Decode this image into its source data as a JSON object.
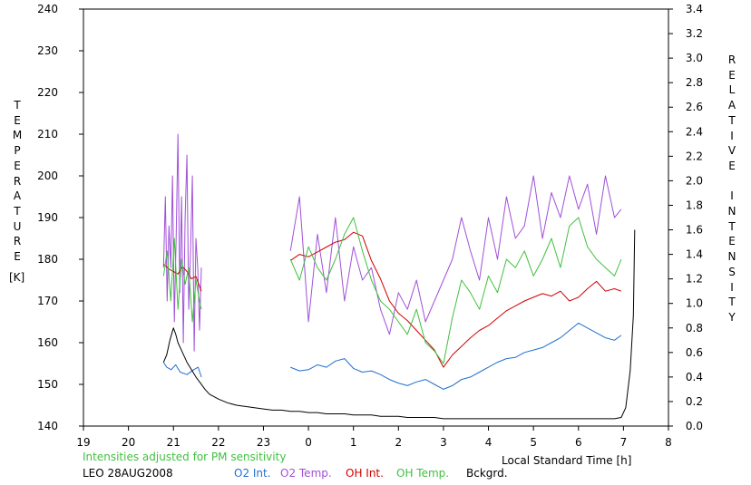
{
  "chart_data": {
    "type": "line",
    "xlabel": "Local Standard Time [h]",
    "ylabel_left": "TEMPERATURE",
    "ylabel_left_unit": "[K]",
    "ylabel_right": "RELATIVE INTENSITY",
    "note": "Intensities adjusted for PM sensitivity",
    "caption": "LEO 28AUG2008",
    "x_tick_labels": [
      "19",
      "20",
      "21",
      "22",
      "23",
      "0",
      "1",
      "2",
      "3",
      "4",
      "5",
      "6",
      "7",
      "8"
    ],
    "x_tick_positions": [
      19,
      20,
      21,
      22,
      23,
      24,
      25,
      26,
      27,
      28,
      29,
      30,
      31,
      32
    ],
    "xlim": [
      19,
      32
    ],
    "ylim_left": [
      140,
      240
    ],
    "yticks_left": [
      140,
      150,
      160,
      170,
      180,
      190,
      200,
      210,
      220,
      230,
      240
    ],
    "ylim_right": [
      0.0,
      3.4
    ],
    "yticks_right": [
      "0.0",
      "0.2",
      "0.4",
      "0.6",
      "0.8",
      "1.0",
      "1.2",
      "1.4",
      "1.6",
      "1.8",
      "2.0",
      "2.2",
      "2.4",
      "2.6",
      "2.8",
      "3.0",
      "3.2",
      "3.4"
    ],
    "grid": false,
    "series": [
      {
        "name": "O2 Int.",
        "axis": "right",
        "color": "#1f6fd0",
        "segments": [
          {
            "x": [
              20.78,
              20.85,
              20.95,
              21.05,
              21.15,
              21.3,
              21.45,
              21.55,
              21.62
            ],
            "y": [
              0.52,
              0.48,
              0.46,
              0.5,
              0.44,
              0.42,
              0.46,
              0.48,
              0.4
            ]
          },
          {
            "x": [
              23.6,
              23.8,
              24.0,
              24.2,
              24.4,
              24.6,
              24.8,
              25.0,
              25.2,
              25.4,
              25.6,
              25.8,
              26.0,
              26.2,
              26.4,
              26.6,
              26.8,
              27.0,
              27.2,
              27.4,
              27.6,
              27.8,
              28.0,
              28.2,
              28.4,
              28.6,
              28.8,
              29.0,
              29.2,
              29.4,
              29.6,
              29.8,
              30.0,
              30.2,
              30.4,
              30.6,
              30.8,
              30.95
            ],
            "y": [
              0.48,
              0.45,
              0.46,
              0.5,
              0.48,
              0.53,
              0.55,
              0.47,
              0.44,
              0.45,
              0.42,
              0.38,
              0.35,
              0.33,
              0.36,
              0.38,
              0.34,
              0.3,
              0.33,
              0.38,
              0.4,
              0.44,
              0.48,
              0.52,
              0.55,
              0.56,
              0.6,
              0.62,
              0.64,
              0.68,
              0.72,
              0.78,
              0.84,
              0.8,
              0.76,
              0.72,
              0.7,
              0.74
            ]
          }
        ]
      },
      {
        "name": "O2 Temp.",
        "axis": "left",
        "color": "#a050d8",
        "segments": [
          {
            "x": [
              20.78,
              20.82,
              20.86,
              20.9,
              20.94,
              20.98,
              21.02,
              21.06,
              21.1,
              21.14,
              21.18,
              21.22,
              21.26,
              21.3,
              21.34,
              21.38,
              21.42,
              21.46,
              21.5,
              21.54,
              21.58,
              21.62
            ],
            "y": [
              178,
              195,
              170,
              188,
              178,
              200,
              165,
              185,
              210,
              172,
              195,
              160,
              190,
              205,
              168,
              182,
              200,
              158,
              185,
              178,
              163,
              178
            ]
          },
          {
            "x": [
              23.6,
              23.8,
              24.0,
              24.2,
              24.4,
              24.6,
              24.8,
              25.0,
              25.2,
              25.4,
              25.6,
              25.8,
              26.0,
              26.2,
              26.4,
              26.6,
              26.8,
              27.0,
              27.2,
              27.4,
              27.6,
              27.8,
              28.0,
              28.2,
              28.4,
              28.6,
              28.8,
              29.0,
              29.2,
              29.4,
              29.6,
              29.8,
              30.0,
              30.2,
              30.4,
              30.6,
              30.8,
              30.95
            ],
            "y": [
              182,
              195,
              165,
              186,
              172,
              190,
              170,
              183,
              175,
              178,
              168,
              162,
              172,
              168,
              175,
              165,
              170,
              175,
              180,
              190,
              182,
              175,
              190,
              180,
              195,
              185,
              188,
              200,
              185,
              196,
              190,
              200,
              192,
              198,
              186,
              200,
              190,
              192
            ]
          }
        ]
      },
      {
        "name": "OH Int.",
        "axis": "right",
        "color": "#d00000",
        "segments": [
          {
            "x": [
              20.78,
              20.9,
              21.0,
              21.1,
              21.2,
              21.3,
              21.4,
              21.5,
              21.62
            ],
            "y": [
              1.32,
              1.28,
              1.26,
              1.24,
              1.3,
              1.26,
              1.2,
              1.22,
              1.1
            ]
          },
          {
            "x": [
              23.6,
              23.8,
              24.0,
              24.2,
              24.4,
              24.6,
              24.8,
              25.0,
              25.2,
              25.4,
              25.6,
              25.8,
              26.0,
              26.2,
              26.4,
              26.6,
              26.8,
              27.0,
              27.2,
              27.4,
              27.6,
              27.8,
              28.0,
              28.2,
              28.4,
              28.6,
              28.8,
              29.0,
              29.2,
              29.4,
              29.6,
              29.8,
              30.0,
              30.2,
              30.4,
              30.6,
              30.8,
              30.95
            ],
            "y": [
              1.35,
              1.4,
              1.38,
              1.42,
              1.46,
              1.5,
              1.52,
              1.58,
              1.55,
              1.35,
              1.2,
              1.02,
              0.92,
              0.86,
              0.78,
              0.7,
              0.62,
              0.48,
              0.58,
              0.65,
              0.72,
              0.78,
              0.82,
              0.88,
              0.94,
              0.98,
              1.02,
              1.05,
              1.08,
              1.06,
              1.1,
              1.02,
              1.05,
              1.12,
              1.18,
              1.1,
              1.12,
              1.1
            ]
          }
        ]
      },
      {
        "name": "OH Temp.",
        "axis": "left",
        "color": "#40c040",
        "segments": [
          {
            "x": [
              20.78,
              20.86,
              20.94,
              21.02,
              21.1,
              21.18,
              21.26,
              21.34,
              21.42,
              21.5,
              21.58,
              21.62
            ],
            "y": [
              176,
              182,
              170,
              185,
              168,
              180,
              174,
              178,
              165,
              175,
              170,
              168
            ]
          },
          {
            "x": [
              23.6,
              23.8,
              24.0,
              24.2,
              24.4,
              24.6,
              24.8,
              25.0,
              25.2,
              25.4,
              25.6,
              25.8,
              26.0,
              26.2,
              26.4,
              26.6,
              26.8,
              27.0,
              27.2,
              27.4,
              27.6,
              27.8,
              28.0,
              28.2,
              28.4,
              28.6,
              28.8,
              29.0,
              29.2,
              29.4,
              29.6,
              29.8,
              30.0,
              30.2,
              30.4,
              30.6,
              30.8,
              30.95
            ],
            "y": [
              180,
              175,
              183,
              178,
              175,
              180,
              186,
              190,
              182,
              175,
              170,
              168,
              165,
              162,
              168,
              160,
              158,
              155,
              166,
              175,
              172,
              168,
              176,
              172,
              180,
              178,
              182,
              176,
              180,
              185,
              178,
              188,
              190,
              183,
              180,
              178,
              176,
              180
            ]
          }
        ]
      },
      {
        "name": "Bckgrd.",
        "axis": "right",
        "color": "#000000",
        "segments": [
          {
            "x": [
              20.78,
              20.85,
              20.92,
              21.0,
              21.05,
              21.1,
              21.2,
              21.3,
              21.4,
              21.5,
              21.6,
              21.7,
              21.8,
              22.0,
              22.2,
              22.4,
              22.6,
              22.8,
              23.0,
              23.2,
              23.4,
              23.6,
              23.8,
              24.0,
              24.2,
              24.4,
              24.6,
              24.8,
              25.0,
              25.2,
              25.4,
              25.6,
              25.8,
              26.0,
              26.2,
              26.4,
              26.6,
              26.8,
              27.0,
              27.2,
              27.4,
              27.6,
              27.8,
              28.0,
              28.2,
              28.4,
              28.6,
              28.8,
              29.0,
              29.2,
              29.4,
              29.6,
              29.8,
              30.0,
              30.2,
              30.4,
              30.6,
              30.8,
              30.95,
              31.05,
              31.15,
              31.22,
              31.25
            ],
            "y": [
              0.52,
              0.58,
              0.7,
              0.8,
              0.75,
              0.68,
              0.6,
              0.52,
              0.46,
              0.4,
              0.35,
              0.3,
              0.26,
              0.22,
              0.19,
              0.17,
              0.16,
              0.15,
              0.14,
              0.13,
              0.13,
              0.12,
              0.12,
              0.11,
              0.11,
              0.1,
              0.1,
              0.1,
              0.09,
              0.09,
              0.09,
              0.08,
              0.08,
              0.08,
              0.07,
              0.07,
              0.07,
              0.07,
              0.06,
              0.06,
              0.06,
              0.06,
              0.06,
              0.06,
              0.06,
              0.06,
              0.06,
              0.06,
              0.06,
              0.06,
              0.06,
              0.06,
              0.06,
              0.06,
              0.06,
              0.06,
              0.06,
              0.06,
              0.07,
              0.15,
              0.45,
              0.9,
              1.6
            ]
          }
        ]
      }
    ]
  }
}
